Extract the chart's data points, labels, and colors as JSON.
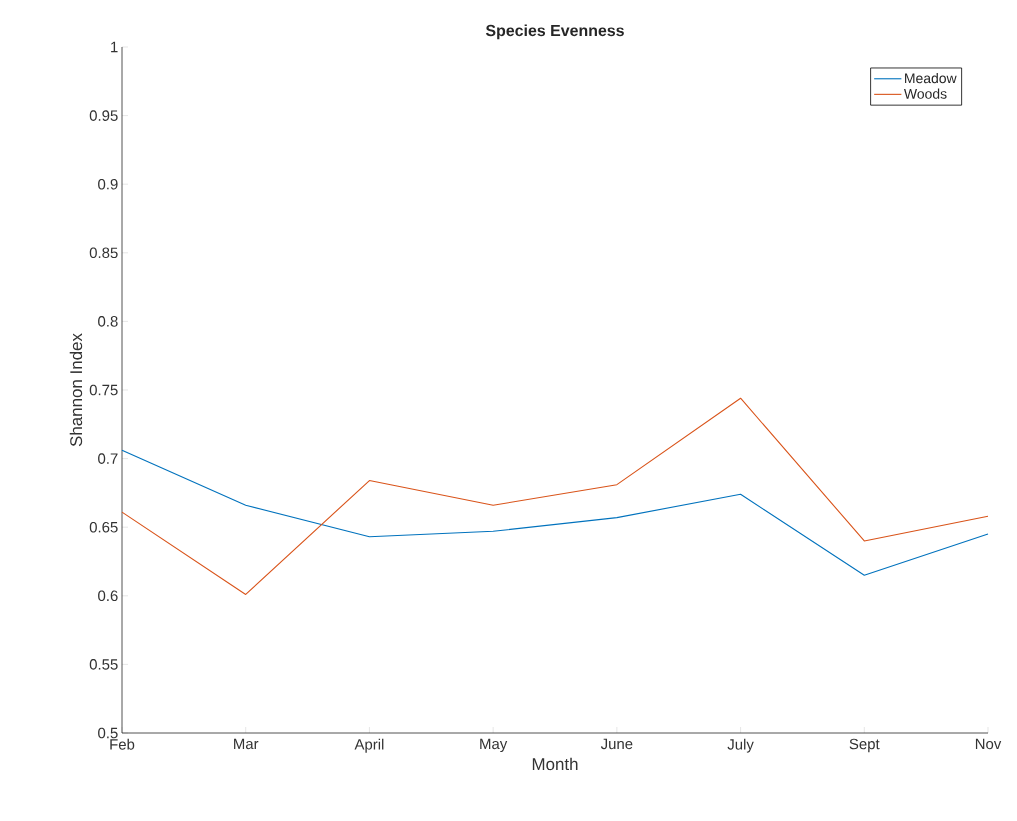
{
  "chart_data": {
    "type": "line",
    "title": "Species Evenness",
    "xlabel": "Month",
    "ylabel": "Shannon Index",
    "categories": [
      "Feb",
      "Mar",
      "April",
      "May",
      "June",
      "July",
      "Sept",
      "Nov"
    ],
    "series": [
      {
        "name": "Meadow",
        "color": "#0072bd",
        "values": [
          0.706,
          0.666,
          0.643,
          0.647,
          0.657,
          0.674,
          0.615,
          0.645
        ]
      },
      {
        "name": "Woods",
        "color": "#d95319",
        "values": [
          0.661,
          0.601,
          0.684,
          0.666,
          0.681,
          0.744,
          0.64,
          0.658
        ]
      }
    ],
    "ylim": [
      0.5,
      1
    ],
    "yticks": [
      0.5,
      0.55,
      0.6,
      0.65,
      0.7,
      0.75,
      0.8,
      0.85,
      0.9,
      0.95,
      1
    ],
    "grid": false,
    "legend": "top right",
    "marker": "none",
    "line_style": "solid"
  }
}
